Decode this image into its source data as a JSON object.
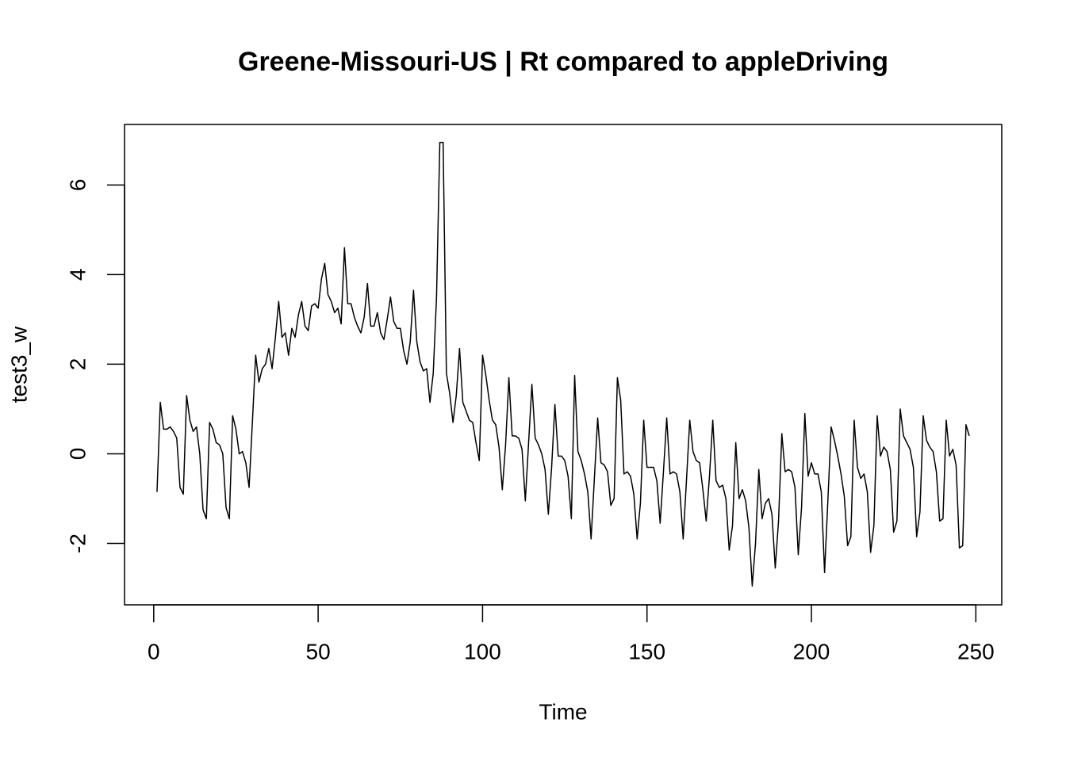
{
  "chart_data": {
    "type": "line",
    "title": "Greene-Missouri-US | Rt compared to appleDriving",
    "xlabel": "Time",
    "ylabel": "test3_w",
    "x": [
      1,
      2,
      3,
      4,
      5,
      6,
      7,
      8,
      9,
      10,
      11,
      12,
      13,
      14,
      15,
      16,
      17,
      18,
      19,
      20,
      21,
      22,
      23,
      24,
      25,
      26,
      27,
      28,
      29,
      30,
      31,
      32,
      33,
      34,
      35,
      36,
      37,
      38,
      39,
      40,
      41,
      42,
      43,
      44,
      45,
      46,
      47,
      48,
      49,
      50,
      51,
      52,
      53,
      54,
      55,
      56,
      57,
      58,
      59,
      60,
      61,
      62,
      63,
      64,
      65,
      66,
      67,
      68,
      69,
      70,
      71,
      72,
      73,
      74,
      75,
      76,
      77,
      78,
      79,
      80,
      81,
      82,
      83,
      84,
      85,
      86,
      87,
      88,
      89,
      90,
      91,
      92,
      93,
      94,
      95,
      96,
      97,
      98,
      99,
      100,
      101,
      102,
      103,
      104,
      105,
      106,
      107,
      108,
      109,
      110,
      111,
      112,
      113,
      114,
      115,
      116,
      117,
      118,
      119,
      120,
      121,
      122,
      123,
      124,
      125,
      126,
      127,
      128,
      129,
      130,
      131,
      132,
      133,
      134,
      135,
      136,
      137,
      138,
      139,
      140,
      141,
      142,
      143,
      144,
      145,
      146,
      147,
      148,
      149,
      150,
      151,
      152,
      153,
      154,
      155,
      156,
      157,
      158,
      159,
      160,
      161,
      162,
      163,
      164,
      165,
      166,
      167,
      168,
      169,
      170,
      171,
      172,
      173,
      174,
      175,
      176,
      177,
      178,
      179,
      180,
      181,
      182,
      183,
      184,
      185,
      186,
      187,
      188,
      189,
      190,
      191,
      192,
      193,
      194,
      195,
      196,
      197,
      198,
      199,
      200,
      201,
      202,
      203,
      204,
      205,
      206,
      207,
      208,
      209,
      210,
      211,
      212,
      213,
      214,
      215,
      216,
      217,
      218,
      219,
      220,
      221,
      222,
      223,
      224,
      225,
      226,
      227,
      228,
      229,
      230,
      231,
      232,
      233,
      234,
      235,
      236,
      237,
      238,
      239,
      240,
      241,
      242,
      243,
      244,
      245,
      246,
      247,
      248
    ],
    "series": [
      {
        "name": "test3_w",
        "color": "#000000",
        "values": [
          -0.85,
          1.15,
          0.55,
          0.55,
          0.6,
          0.5,
          0.35,
          -0.75,
          -0.9,
          1.3,
          0.75,
          0.5,
          0.6,
          0.0,
          -1.25,
          -1.45,
          0.7,
          0.55,
          0.25,
          0.2,
          0.0,
          -1.2,
          -1.45,
          0.85,
          0.55,
          0.0,
          0.05,
          -0.2,
          -0.75,
          0.7,
          2.2,
          1.6,
          1.9,
          2.0,
          2.35,
          1.9,
          2.6,
          3.4,
          2.6,
          2.7,
          2.2,
          2.8,
          2.6,
          3.1,
          3.4,
          2.85,
          2.75,
          3.3,
          3.35,
          3.25,
          3.9,
          4.25,
          3.55,
          3.4,
          3.15,
          3.25,
          2.9,
          4.6,
          3.35,
          3.35,
          3.05,
          2.85,
          2.7,
          3.05,
          3.8,
          2.85,
          2.85,
          3.15,
          2.7,
          2.55,
          3.0,
          3.5,
          2.95,
          2.8,
          2.8,
          2.3,
          2.0,
          2.5,
          3.65,
          2.5,
          2.05,
          1.85,
          1.9,
          1.15,
          1.8,
          3.5,
          6.95,
          6.95,
          1.8,
          1.35,
          0.7,
          1.3,
          2.35,
          1.15,
          0.95,
          0.75,
          0.7,
          0.25,
          -0.15,
          2.2,
          1.75,
          1.2,
          0.75,
          0.65,
          0.15,
          -0.8,
          0.2,
          1.7,
          0.4,
          0.4,
          0.35,
          0.1,
          -1.05,
          0.25,
          1.55,
          0.35,
          0.2,
          0.0,
          -0.35,
          -1.35,
          -0.3,
          1.1,
          -0.05,
          -0.05,
          -0.15,
          -0.5,
          -1.45,
          1.75,
          0.05,
          -0.15,
          -0.45,
          -0.85,
          -1.9,
          -0.55,
          0.8,
          -0.2,
          -0.25,
          -0.4,
          -1.15,
          -1.0,
          1.7,
          1.2,
          -0.45,
          -0.4,
          -0.5,
          -0.9,
          -1.9,
          -1.1,
          0.75,
          -0.3,
          -0.3,
          -0.3,
          -0.6,
          -1.55,
          -0.4,
          0.8,
          -0.45,
          -0.4,
          -0.45,
          -0.85,
          -1.9,
          -0.6,
          0.75,
          0.05,
          -0.15,
          -0.2,
          -0.8,
          -1.5,
          -0.5,
          0.75,
          -0.6,
          -0.75,
          -0.7,
          -1.0,
          -2.15,
          -1.6,
          0.25,
          -1.0,
          -0.8,
          -1.05,
          -1.65,
          -2.95,
          -2.0,
          -0.35,
          -1.45,
          -1.1,
          -1.0,
          -1.35,
          -2.55,
          -1.5,
          0.45,
          -0.4,
          -0.35,
          -0.4,
          -0.75,
          -2.25,
          -1.2,
          0.9,
          -0.5,
          -0.2,
          -0.45,
          -0.45,
          -0.85,
          -2.65,
          -1.05,
          0.6,
          0.3,
          -0.05,
          -0.45,
          -0.95,
          -2.05,
          -1.85,
          0.75,
          -0.3,
          -0.55,
          -0.45,
          -0.85,
          -2.2,
          -1.6,
          0.85,
          -0.05,
          0.15,
          0.05,
          -0.35,
          -1.75,
          -1.5,
          1.0,
          0.4,
          0.25,
          0.1,
          -0.3,
          -1.85,
          -1.3,
          0.85,
          0.3,
          0.15,
          0.05,
          -0.4,
          -1.5,
          -1.45,
          0.75,
          -0.05,
          0.1,
          -0.25,
          -2.1,
          -2.05,
          0.65,
          0.4
        ]
      }
    ],
    "xlim": [
      -8.88,
      257.88
    ],
    "xticks": [
      0,
      50,
      100,
      150,
      200,
      250
    ],
    "ylim": [
      -3.37,
      7.35
    ],
    "yticks": [
      -2,
      0,
      2,
      4,
      6
    ]
  }
}
